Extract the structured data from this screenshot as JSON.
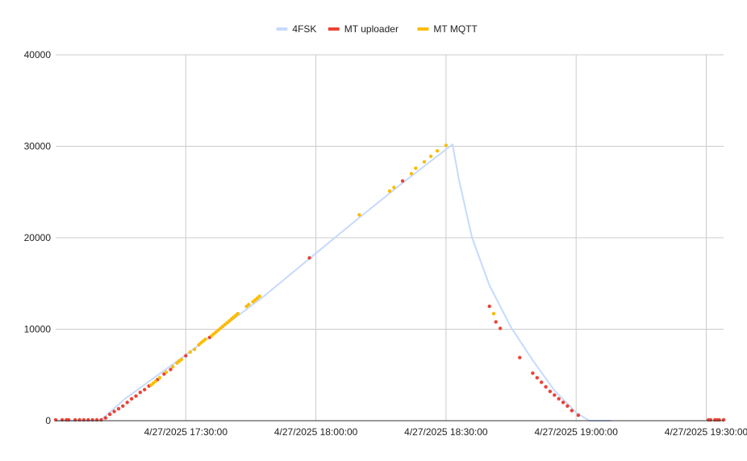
{
  "chart_data": {
    "type": "scatter",
    "title": "",
    "xlabel": "",
    "ylabel": "",
    "x_axis_type": "time",
    "x_range": [
      "4/27/2025 17:00:00",
      "4/27/2025 19:34:00"
    ],
    "ylim": [
      0,
      40000
    ],
    "y_ticks": [
      0,
      10000,
      20000,
      30000,
      40000
    ],
    "y_tick_labels": [
      "0",
      "10000",
      "20000",
      "30000",
      "40000"
    ],
    "x_ticks": [
      "4/27/2025 17:30:00",
      "4/27/2025 18:00:00",
      "4/27/2025 18:30:00",
      "4/27/2025 19:00:00",
      "4/27/2025 19:30:00"
    ],
    "x_tick_labels": [
      "4/27/2025 17:30:00",
      "4/27/2025 18:00:00",
      "4/27/2025 18:30:00",
      "4/27/2025 19:00:00",
      "4/27/2025 19:30:00"
    ],
    "grid": true,
    "legend_position": "top",
    "series": [
      {
        "name": "4FSK",
        "kind": "line",
        "color": "#c6dafc",
        "points": [
          [
            "17:00:00",
            0
          ],
          [
            "17:10:00",
            0
          ],
          [
            "17:11:00",
            300
          ],
          [
            "17:16:00",
            2400
          ],
          [
            "17:30:00",
            7200
          ],
          [
            "17:48:00",
            13600
          ],
          [
            "18:00:00",
            18300
          ],
          [
            "18:10:00",
            22200
          ],
          [
            "18:20:00",
            26000
          ],
          [
            "18:31:30",
            30200
          ],
          [
            "18:33:00",
            26300
          ],
          [
            "18:36:00",
            20000
          ],
          [
            "18:40:00",
            14800
          ],
          [
            "18:45:00",
            10200
          ],
          [
            "18:50:00",
            6600
          ],
          [
            "18:55:00",
            3300
          ],
          [
            "19:00:00",
            900
          ],
          [
            "19:03:00",
            0
          ],
          [
            "19:08:00",
            0
          ]
        ]
      },
      {
        "name": "MT uploader",
        "kind": "points",
        "color": "#ea4335",
        "points": [
          [
            "17:00:00",
            100
          ],
          [
            "17:01:30",
            100
          ],
          [
            "17:02:30",
            100
          ],
          [
            "17:03:00",
            100
          ],
          [
            "17:04:30",
            100
          ],
          [
            "17:05:30",
            100
          ],
          [
            "17:06:30",
            100
          ],
          [
            "17:07:30",
            100
          ],
          [
            "17:08:30",
            100
          ],
          [
            "17:09:30",
            100
          ],
          [
            "17:10:30",
            100
          ],
          [
            "17:11:30",
            300
          ],
          [
            "17:12:30",
            700
          ],
          [
            "17:13:30",
            1000
          ],
          [
            "17:14:30",
            1300
          ],
          [
            "17:15:30",
            1600
          ],
          [
            "17:16:30",
            2000
          ],
          [
            "17:17:30",
            2400
          ],
          [
            "17:18:30",
            2700
          ],
          [
            "17:19:30",
            3100
          ],
          [
            "17:20:30",
            3400
          ],
          [
            "17:21:30",
            3800
          ],
          [
            "17:23:30",
            4500
          ],
          [
            "17:25:00",
            5100
          ],
          [
            "17:26:30",
            5600
          ],
          [
            "17:30:00",
            7100
          ],
          [
            "17:35:30",
            9100
          ],
          [
            "17:58:30",
            17800
          ],
          [
            "18:20:00",
            26200
          ],
          [
            "18:40:00",
            12500
          ],
          [
            "18:41:30",
            10800
          ],
          [
            "18:42:30",
            10100
          ],
          [
            "18:47:00",
            6900
          ],
          [
            "18:50:00",
            5200
          ],
          [
            "18:51:00",
            4700
          ],
          [
            "18:52:00",
            4200
          ],
          [
            "18:53:00",
            3700
          ],
          [
            "18:54:00",
            3200
          ],
          [
            "18:55:00",
            2800
          ],
          [
            "18:56:00",
            2400
          ],
          [
            "18:57:00",
            2000
          ],
          [
            "18:58:00",
            1600
          ],
          [
            "18:59:00",
            1100
          ],
          [
            "19:00:30",
            600
          ],
          [
            "19:30:30",
            100
          ],
          [
            "19:31:00",
            100
          ],
          [
            "19:32:00",
            100
          ],
          [
            "19:32:30",
            100
          ],
          [
            "19:33:00",
            100
          ],
          [
            "19:34:00",
            100
          ]
        ]
      },
      {
        "name": "MT MQTT",
        "kind": "points",
        "color": "#fbbc04",
        "points": [
          [
            "17:22:00",
            3900
          ],
          [
            "17:22:30",
            4100
          ],
          [
            "17:23:00",
            4300
          ],
          [
            "17:24:00",
            4700
          ],
          [
            "17:25:30",
            5300
          ],
          [
            "17:27:00",
            5900
          ],
          [
            "17:28:00",
            6300
          ],
          [
            "17:28:30",
            6500
          ],
          [
            "17:29:00",
            6700
          ],
          [
            "17:31:00",
            7500
          ],
          [
            "17:32:00",
            7800
          ],
          [
            "17:33:00",
            8300
          ],
          [
            "17:33:30",
            8500
          ],
          [
            "17:34:00",
            8700
          ],
          [
            "17:34:30",
            8900
          ],
          [
            "17:36:00",
            9300
          ],
          [
            "17:36:30",
            9500
          ],
          [
            "17:37:00",
            9700
          ],
          [
            "17:37:30",
            9900
          ],
          [
            "17:38:00",
            10100
          ],
          [
            "17:38:30",
            10300
          ],
          [
            "17:39:00",
            10500
          ],
          [
            "17:39:30",
            10700
          ],
          [
            "17:40:00",
            10900
          ],
          [
            "17:40:30",
            11100
          ],
          [
            "17:41:00",
            11300
          ],
          [
            "17:41:30",
            11500
          ],
          [
            "17:42:00",
            11700
          ],
          [
            "17:44:00",
            12500
          ],
          [
            "17:44:30",
            12700
          ],
          [
            "17:45:30",
            13000
          ],
          [
            "17:46:00",
            13200
          ],
          [
            "17:46:30",
            13400
          ],
          [
            "17:47:00",
            13600
          ],
          [
            "18:10:00",
            22500
          ],
          [
            "18:17:00",
            25100
          ],
          [
            "18:18:00",
            25500
          ],
          [
            "18:22:00",
            27000
          ],
          [
            "18:23:00",
            27600
          ],
          [
            "18:25:00",
            28300
          ],
          [
            "18:26:30",
            28900
          ],
          [
            "18:28:00",
            29500
          ],
          [
            "18:30:00",
            30100
          ],
          [
            "18:41:00",
            11700
          ]
        ]
      }
    ]
  }
}
